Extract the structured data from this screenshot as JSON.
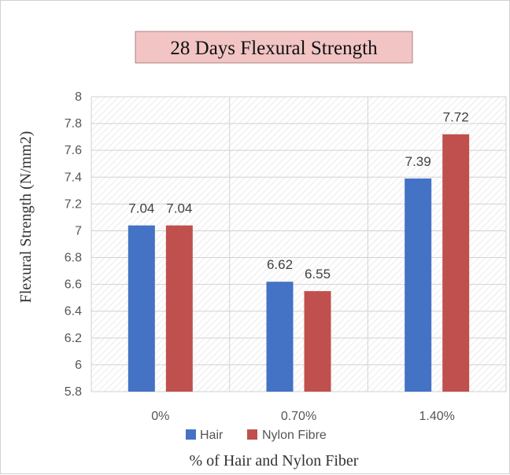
{
  "chart_data": {
    "type": "bar",
    "title": "28 Days Flexural Strength",
    "xlabel": "% of Hair and Nylon Fiber",
    "ylabel": "Flexural Strength (N/mm2)",
    "categories": [
      "0%",
      "0.70%",
      "1.40%"
    ],
    "series": [
      {
        "name": "Hair",
        "values": [
          7.04,
          6.62,
          7.39
        ],
        "labels": [
          "7.04",
          "6.62",
          "7.39"
        ],
        "color": "#4472c4"
      },
      {
        "name": "Nylon Fibre",
        "values": [
          7.04,
          6.55,
          7.72
        ],
        "labels": [
          "7.04",
          "6.55",
          "7.72"
        ],
        "color": "#c0504d"
      }
    ],
    "ylim": [
      5.8,
      8
    ],
    "yticks": [
      "8",
      "7.8",
      "7.6",
      "7.4",
      "7.2",
      "7",
      "6.8",
      "6.6",
      "6.4",
      "6.2",
      "6",
      "5.8"
    ],
    "grid": true,
    "legend_position": "bottom",
    "title_box_color": "#f2c4c4",
    "plot_background": "hatched"
  }
}
